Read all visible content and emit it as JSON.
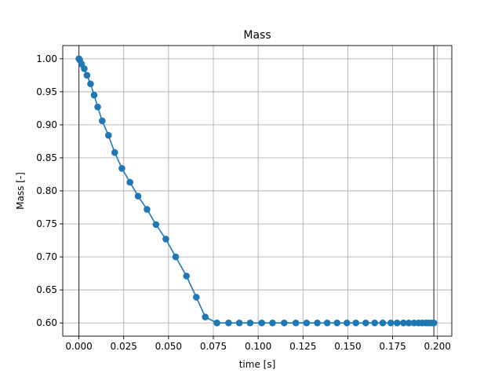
{
  "chart_data": {
    "type": "line",
    "title": "Mass",
    "xlabel": "time [s]",
    "ylabel": "Mass [-]",
    "xlim": [
      -0.009,
      0.208
    ],
    "ylim": [
      0.58,
      1.02
    ],
    "grid": true,
    "x_ticks": [
      "0.000",
      "0.025",
      "0.050",
      "0.075",
      "0.100",
      "0.125",
      "0.150",
      "0.175",
      "0.200"
    ],
    "x_tick_values": [
      0,
      0.025,
      0.05,
      0.075,
      0.1,
      0.125,
      0.15,
      0.175,
      0.2
    ],
    "y_ticks": [
      "0.60",
      "0.65",
      "0.70",
      "0.75",
      "0.80",
      "0.85",
      "0.90",
      "0.95",
      "1.00"
    ],
    "y_tick_values": [
      0.6,
      0.65,
      0.7,
      0.75,
      0.8,
      0.85,
      0.9,
      0.95,
      1.0
    ],
    "vertical_lines": [
      0.0,
      0.198
    ],
    "series": [
      {
        "name": "Mass",
        "color": "#1f77b4",
        "marker": "circle",
        "x": [
          0.0,
          0.0005,
          0.0015,
          0.003,
          0.0045,
          0.0065,
          0.0085,
          0.0105,
          0.013,
          0.0165,
          0.02,
          0.024,
          0.0285,
          0.033,
          0.038,
          0.043,
          0.0485,
          0.054,
          0.06,
          0.0655,
          0.0705,
          0.077,
          0.0835,
          0.0895,
          0.0955,
          0.102,
          0.108,
          0.1145,
          0.121,
          0.127,
          0.133,
          0.1385,
          0.144,
          0.1495,
          0.1545,
          0.16,
          0.165,
          0.1695,
          0.174,
          0.1775,
          0.181,
          0.184,
          0.187,
          0.1895,
          0.1915,
          0.1935,
          0.195,
          0.1965,
          0.198
        ],
        "values": [
          1.0,
          0.998,
          0.992,
          0.985,
          0.975,
          0.962,
          0.945,
          0.927,
          0.906,
          0.884,
          0.858,
          0.834,
          0.813,
          0.792,
          0.772,
          0.749,
          0.727,
          0.7,
          0.671,
          0.639,
          0.609,
          0.6,
          0.6,
          0.6,
          0.6,
          0.6,
          0.6,
          0.6,
          0.6,
          0.6,
          0.6,
          0.6,
          0.6,
          0.6,
          0.6,
          0.6,
          0.6,
          0.6,
          0.6,
          0.6,
          0.6,
          0.6,
          0.6,
          0.6,
          0.6,
          0.6,
          0.6,
          0.6,
          0.6
        ]
      }
    ]
  }
}
